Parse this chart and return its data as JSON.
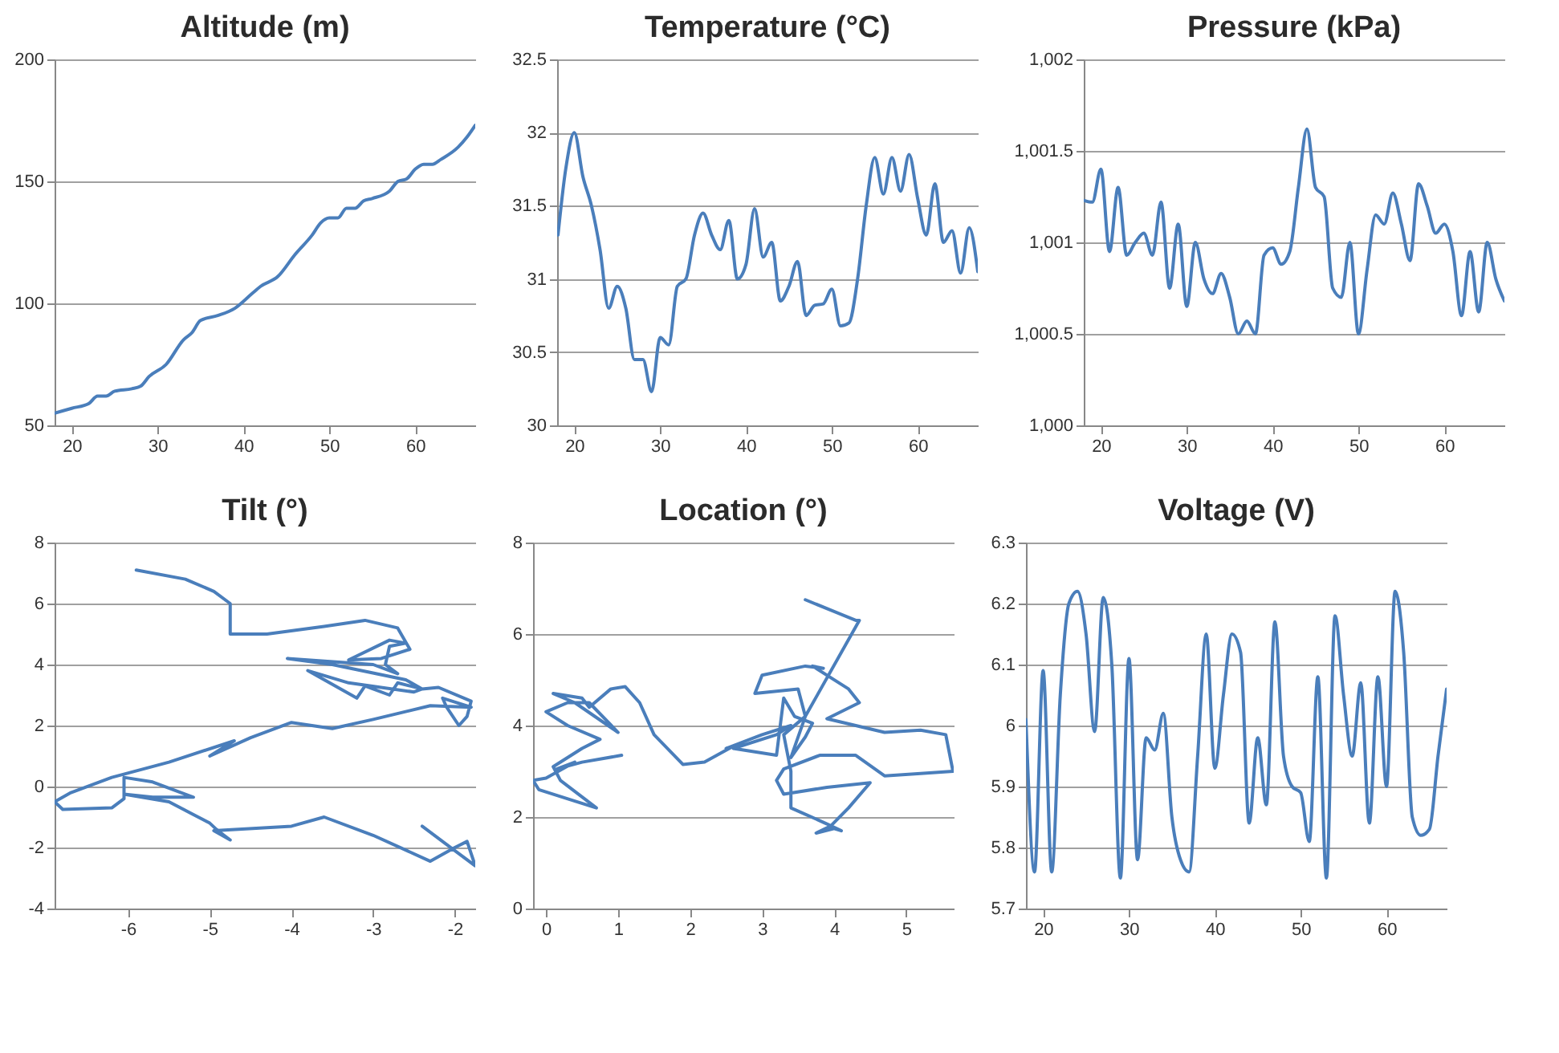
{
  "chart_data": [
    {
      "type": "line",
      "title": "Altitude (m)",
      "grid": "y",
      "marker": "none",
      "line_style": "solid",
      "xlim": [
        18,
        67
      ],
      "xticks": [
        20,
        30,
        40,
        50,
        60
      ],
      "ylim": [
        50,
        200
      ],
      "yticks": [
        50,
        100,
        150,
        200
      ],
      "series": [
        {
          "color": "#4a7ebb",
          "x": [
            18,
            20,
            22,
            23,
            24,
            25,
            27,
            28,
            29,
            31,
            33,
            34,
            35,
            37,
            39,
            41,
            42,
            44,
            46,
            48,
            49,
            50,
            51,
            52,
            53,
            54,
            55,
            57,
            58,
            59,
            60,
            61,
            62,
            63,
            65,
            66,
            67
          ],
          "values": [
            55,
            57,
            59,
            62,
            62,
            64,
            65,
            66,
            70,
            75,
            85,
            88,
            93,
            95,
            98,
            104,
            107,
            111,
            120,
            128,
            133,
            135,
            135,
            139,
            139,
            142,
            143,
            146,
            150,
            151,
            155,
            157,
            157,
            159,
            164,
            168,
            173
          ]
        }
      ]
    },
    {
      "type": "line",
      "title": "Temperature (°C)",
      "grid": "y",
      "marker": "none",
      "line_style": "solid",
      "xlim": [
        18,
        67
      ],
      "xticks": [
        20,
        30,
        40,
        50,
        60
      ],
      "ylim": [
        30,
        32.5
      ],
      "yticks": [
        30,
        30.5,
        31,
        31.5,
        32,
        32.5
      ],
      "series": [
        {
          "color": "#4a7ebb",
          "x": [
            18.1,
            19,
            20,
            21,
            22,
            23,
            24,
            25,
            26,
            27,
            28,
            29,
            30,
            31,
            32,
            33,
            34,
            35,
            36,
            37,
            38,
            39,
            40,
            41,
            42,
            43,
            44,
            45,
            46,
            47,
            48,
            49,
            50,
            51,
            52,
            53,
            54,
            55,
            56,
            57,
            58,
            59,
            60,
            61,
            62,
            63,
            64,
            65,
            66,
            67
          ],
          "values": [
            31.3,
            31.75,
            32.0,
            31.7,
            31.5,
            31.2,
            30.8,
            30.95,
            30.8,
            30.45,
            30.45,
            30.23,
            30.6,
            30.55,
            30.95,
            31.0,
            31.3,
            31.45,
            31.3,
            31.2,
            31.4,
            31.0,
            31.1,
            31.48,
            31.15,
            31.25,
            30.85,
            30.95,
            31.12,
            30.75,
            30.82,
            30.83,
            30.93,
            30.68,
            30.7,
            31.0,
            31.5,
            31.83,
            31.58,
            31.83,
            31.6,
            31.85,
            31.55,
            31.3,
            31.65,
            31.25,
            31.33,
            31.04,
            31.35,
            31.05
          ]
        }
      ]
    },
    {
      "type": "line",
      "title": "Pressure (kPa)",
      "grid": "y",
      "marker": "none",
      "line_style": "solid",
      "xlim": [
        18,
        67
      ],
      "xticks": [
        20,
        30,
        40,
        50,
        60
      ],
      "ylim": [
        1000,
        1002
      ],
      "yticks": [
        {
          "value": 1000,
          "label": "1,000"
        },
        {
          "value": 1000.5,
          "label": "1,000.5"
        },
        {
          "value": 1001,
          "label": "1,001"
        },
        {
          "value": 1001.5,
          "label": "1,001.5"
        },
        {
          "value": 1002,
          "label": "1,002"
        }
      ],
      "series": [
        {
          "color": "#4a7ebb",
          "x": [
            18,
            19,
            20,
            21,
            22,
            23,
            24,
            25,
            26,
            27,
            28,
            29,
            30,
            31,
            32,
            33,
            34,
            35,
            36,
            37,
            38,
            39,
            40,
            41,
            42,
            43,
            44,
            45,
            46,
            47,
            48,
            49,
            50,
            51,
            52,
            53,
            54,
            55,
            56,
            57,
            58,
            59,
            60,
            61,
            62,
            63,
            64,
            65,
            66,
            67
          ],
          "values": [
            1001.23,
            1001.22,
            1001.4,
            1000.95,
            1001.3,
            1000.93,
            1001.0,
            1001.05,
            1000.93,
            1001.22,
            1000.75,
            1001.1,
            1000.65,
            1001.0,
            1000.8,
            1000.72,
            1000.83,
            1000.7,
            1000.5,
            1000.57,
            1000.5,
            1000.93,
            1000.97,
            1000.88,
            1000.95,
            1001.3,
            1001.62,
            1001.3,
            1001.25,
            1000.75,
            1000.7,
            1001.0,
            1000.5,
            1000.85,
            1001.15,
            1001.1,
            1001.27,
            1001.1,
            1000.9,
            1001.32,
            1001.2,
            1001.05,
            1001.1,
            1000.95,
            1000.6,
            1000.95,
            1000.62,
            1001.0,
            1000.8,
            1000.68
          ]
        }
      ]
    },
    {
      "type": "line",
      "title": "Tilt (°)",
      "grid": "y",
      "marker": "none",
      "line_style": "solid",
      "xlim": [
        -6.9,
        -1.75
      ],
      "xticks": [
        -6,
        -5,
        -4,
        -3,
        -2
      ],
      "ylim": [
        -4,
        8
      ],
      "yticks": [
        -4,
        -2,
        0,
        2,
        4,
        6,
        8
      ],
      "series": [
        {
          "color": "#4a7ebb",
          "x": [
            -5.9,
            -5.3,
            -4.95,
            -4.75,
            -4.75,
            -4.3,
            -3.6,
            -3.1,
            -2.7,
            -2.55,
            -2.9,
            -3.3,
            -2.8,
            -2.6,
            -2.8,
            -2.85,
            -2.7,
            -3.0,
            -4.05,
            -3.5,
            -2.6,
            -2.4,
            -2.7,
            -2.8,
            -3.1,
            -3.2,
            -3.8,
            -3.3,
            -2.5,
            -2.4,
            -2.2,
            -1.8,
            -1.85,
            -1.95,
            -2.1,
            -2.15,
            -1.8,
            -2.3,
            -3.0,
            -3.5,
            -4.0,
            -4.5,
            -5.0,
            -4.7,
            -5.5,
            -6.2,
            -6.7,
            -6.9,
            -6.8,
            -6.2,
            -6.05,
            -6.05,
            -5.7,
            -5.2,
            -5.7,
            -6.05,
            -5.5,
            -5.0,
            -4.9,
            -4.75,
            -4.95,
            -4.0,
            -3.6,
            -3.0,
            -2.3,
            -2.0,
            -1.85,
            -1.75,
            -2.0,
            -2.4
          ],
          "values": [
            7.1,
            6.8,
            6.4,
            6.0,
            5.0,
            5.0,
            5.25,
            5.45,
            5.2,
            4.5,
            4.2,
            4.15,
            4.8,
            4.7,
            4.6,
            4.0,
            3.7,
            4.0,
            4.2,
            4.0,
            3.5,
            3.2,
            3.4,
            3.0,
            3.3,
            2.9,
            3.8,
            3.4,
            3.1,
            3.2,
            3.25,
            2.8,
            2.3,
            2.0,
            2.6,
            2.9,
            2.6,
            2.65,
            2.2,
            1.9,
            2.1,
            1.6,
            1.0,
            1.5,
            0.8,
            0.3,
            -0.2,
            -0.5,
            -0.75,
            -0.7,
            -0.4,
            0.3,
            0.15,
            -0.35,
            -0.35,
            -0.25,
            -0.5,
            -1.2,
            -1.45,
            -1.75,
            -1.45,
            -1.3,
            -1.0,
            -1.6,
            -2.45,
            -2.0,
            -1.8,
            -2.6,
            -2.1,
            -1.3
          ]
        }
      ]
    },
    {
      "type": "line",
      "title": "Location (°)",
      "grid": "y",
      "marker": "none",
      "line_style": "solid",
      "xlim": [
        -0.18,
        5.66
      ],
      "xticks": [
        0,
        1,
        2,
        3,
        4,
        5
      ],
      "ylim": [
        0,
        8
      ],
      "yticks": [
        0,
        2,
        4,
        6,
        8
      ],
      "series": [
        {
          "color": "#4a7ebb",
          "x": [
            1.05,
            0.5,
            0.15,
            0.4,
            0.0,
            -0.18,
            -0.1,
            0.4,
            0.7,
            0.2,
            0.1,
            0.5,
            0.75,
            0.3,
            0.0,
            0.3,
            0.6,
            1.0,
            0.4,
            0.1,
            0.5,
            0.6,
            0.9,
            1.1,
            1.3,
            1.5,
            1.9,
            2.2,
            2.6,
            2.5,
            3.0,
            3.4,
            3.2,
            2.6,
            3.2,
            3.3,
            3.45,
            3.7,
            3.6,
            3.4,
            3.6,
            3.5,
            2.9,
            3.0,
            3.6,
            3.85,
            3.7,
            4.2,
            4.35,
            3.9,
            4.7,
            5.2,
            5.55,
            5.65,
            5.2,
            4.7,
            4.3,
            3.8,
            3.3,
            3.2,
            3.3,
            3.9,
            4.5,
            4.2,
            3.95,
            3.75,
            4.0,
            4.1,
            3.9,
            3.4,
            3.4,
            3.3,
            3.6,
            4.35,
            4.3,
            3.6
          ],
          "values": [
            3.35,
            3.2,
            3.05,
            3.2,
            2.85,
            2.8,
            2.6,
            2.35,
            2.2,
            2.8,
            3.1,
            3.5,
            3.7,
            4.0,
            4.3,
            4.5,
            4.5,
            3.85,
            4.5,
            4.7,
            4.6,
            4.4,
            4.8,
            4.85,
            4.5,
            3.8,
            3.15,
            3.2,
            3.55,
            3.5,
            3.8,
            4.0,
            3.8,
            3.5,
            3.35,
            4.6,
            4.2,
            4.05,
            3.75,
            3.3,
            4.2,
            4.8,
            4.7,
            5.1,
            5.3,
            5.25,
            5.3,
            4.8,
            4.5,
            4.15,
            3.85,
            3.9,
            3.8,
            3.0,
            2.95,
            2.9,
            3.35,
            3.35,
            3.05,
            2.8,
            2.5,
            2.65,
            2.75,
            2.2,
            1.8,
            1.65,
            1.75,
            1.7,
            1.85,
            2.2,
            3.0,
            3.8,
            4.2,
            6.3,
            6.3,
            6.75
          ]
        }
      ]
    },
    {
      "type": "line",
      "title": "Voltage (V)",
      "grid": "y",
      "marker": "none",
      "line_style": "solid",
      "xlim": [
        18,
        67
      ],
      "xticks": [
        20,
        30,
        40,
        50,
        60
      ],
      "ylim": [
        5.7,
        6.3
      ],
      "yticks": [
        5.7,
        5.8,
        5.9,
        6,
        6.1,
        6.2,
        6.3
      ],
      "series": [
        {
          "color": "#4a7ebb",
          "x": [
            18,
            19,
            20,
            21,
            22,
            23,
            24,
            25,
            26,
            27,
            28,
            29,
            30,
            31,
            32,
            33,
            34,
            35,
            36,
            37,
            38,
            39,
            40,
            41,
            42,
            43,
            44,
            45,
            46,
            47,
            48,
            49,
            50,
            51,
            52,
            53,
            54,
            55,
            56,
            57,
            58,
            59,
            60,
            61,
            62,
            63,
            64,
            65,
            66,
            67
          ],
          "values": [
            6.01,
            5.76,
            6.09,
            5.76,
            6.05,
            6.2,
            6.22,
            6.15,
            5.99,
            6.21,
            6.1,
            5.75,
            6.11,
            5.78,
            5.98,
            5.96,
            6.02,
            5.85,
            5.78,
            5.76,
            5.95,
            6.15,
            5.93,
            6.05,
            6.15,
            6.12,
            5.84,
            5.98,
            5.87,
            6.17,
            5.95,
            5.9,
            5.89,
            5.81,
            6.08,
            5.75,
            6.18,
            6.05,
            5.95,
            6.07,
            5.84,
            6.08,
            5.9,
            6.22,
            6.12,
            5.85,
            5.82,
            5.83,
            5.95,
            6.06
          ]
        }
      ]
    }
  ]
}
